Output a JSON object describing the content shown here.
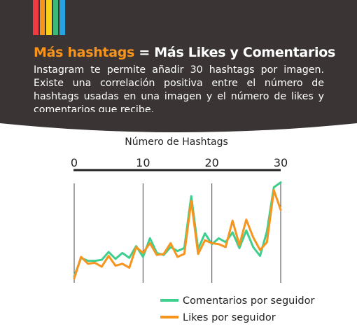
{
  "header": {
    "stripe_colors": [
      "#f03b44",
      "#f7941d",
      "#fcd116",
      "#3cb878",
      "#29a3e0"
    ],
    "title_accent": "Más hashtags",
    "title_rest": " = Más Likes y Comentarios",
    "description": "Instagram te permite añadir 30 hashtags por imagen. Existe una correlación positiva entre el número de hashtags usadas en una imagen y el número de likes y comentarios que recibe."
  },
  "colors": {
    "background_dark": "#3a3534",
    "accent": "#f7941d",
    "comments": "#3ecf8e",
    "likes": "#f7941d"
  },
  "chart_data": {
    "type": "line",
    "xlabel": "Número de Hashtags",
    "xlim": [
      0,
      30
    ],
    "x_ticks": [
      {
        "value": 0,
        "label": "0"
      },
      {
        "value": 10,
        "label": "10"
      },
      {
        "value": 20,
        "label": "20"
      },
      {
        "value": 30,
        "label": "30"
      }
    ],
    "ylim": [
      0,
      100
    ],
    "grid": "vertical lines at 0, 10, 20, 30",
    "legend_position": "bottom-right",
    "series": [
      {
        "name": "Comentarios por seguidor",
        "color": "#3ecf8e",
        "x": [
          0,
          1,
          2,
          3,
          4,
          5,
          6,
          7,
          8,
          9,
          10,
          11,
          12,
          13,
          14,
          15,
          16,
          17,
          18,
          19,
          20,
          21,
          22,
          23,
          24,
          25,
          26,
          27,
          28,
          29,
          30
        ],
        "y": [
          5,
          24,
          21,
          21,
          22,
          30,
          23,
          29,
          24,
          36,
          25,
          44,
          29,
          27,
          35,
          31,
          34,
          87,
          33,
          49,
          38,
          44,
          40,
          50,
          34,
          52,
          35,
          26,
          51,
          96,
          101
        ]
      },
      {
        "name": "Likes por seguidor",
        "color": "#f7941d",
        "x": [
          0,
          1,
          2,
          3,
          4,
          5,
          6,
          7,
          8,
          9,
          10,
          11,
          12,
          13,
          14,
          15,
          16,
          17,
          18,
          19,
          20,
          21,
          22,
          23,
          24,
          25,
          26,
          27,
          28,
          29,
          30
        ],
        "y": [
          3,
          25,
          18,
          19,
          15,
          26,
          16,
          18,
          14,
          35,
          29,
          39,
          27,
          28,
          39,
          25,
          28,
          82,
          28,
          42,
          39,
          38,
          35,
          62,
          37,
          63,
          45,
          32,
          40,
          93,
          73
        ]
      }
    ]
  }
}
